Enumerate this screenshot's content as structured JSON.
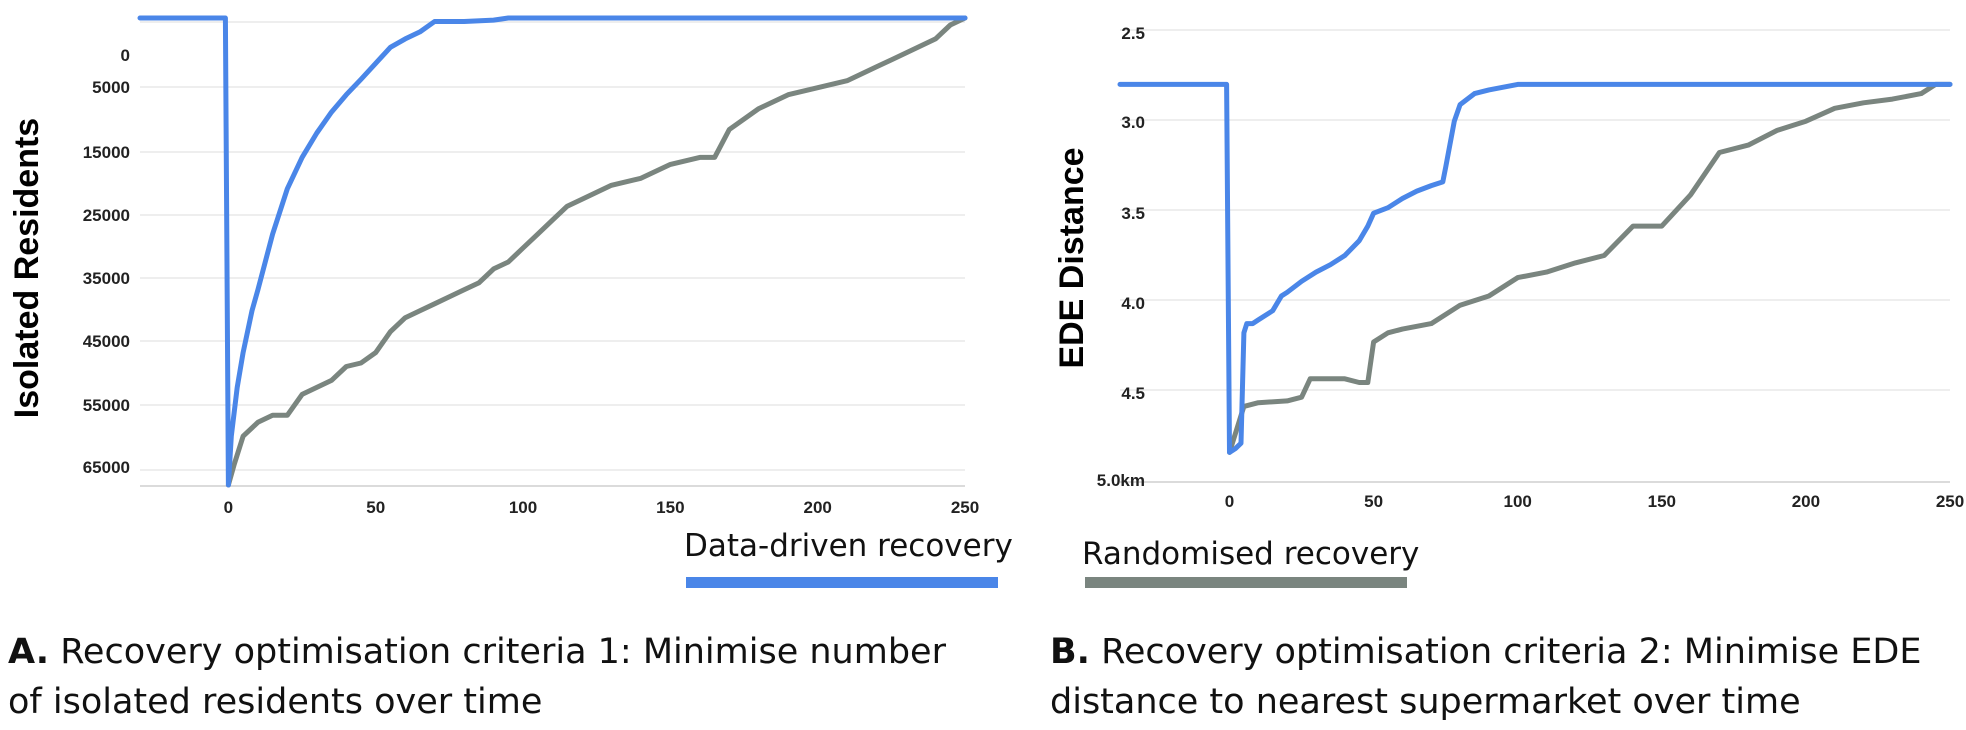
{
  "chart_data": [
    {
      "type": "line",
      "panel": "A",
      "xlabel": "",
      "ylabel": "Isolated Residents",
      "y_inverted": true,
      "xlim": [
        -30,
        250
      ],
      "ylim": [
        0,
        67000
      ],
      "x_ticks": [
        "0",
        "50",
        "100",
        "150",
        "200",
        "250"
      ],
      "y_ticks": [
        "0",
        "5000",
        "15000",
        "25000",
        "35000",
        "45000",
        "55000",
        "65000"
      ],
      "grid": true,
      "series": [
        {
          "name": "Data-driven recovery",
          "color": "#4a86e8",
          "x": [
            -30,
            -1,
            0,
            1,
            3,
            5,
            8,
            10,
            15,
            20,
            25,
            30,
            35,
            40,
            45,
            50,
            55,
            60,
            65,
            70,
            75,
            80,
            90,
            95,
            100,
            150,
            200,
            250
          ],
          "y": [
            0,
            0,
            67000,
            60000,
            53000,
            48000,
            42000,
            39000,
            31000,
            24500,
            20000,
            16500,
            13500,
            11000,
            8800,
            6500,
            4200,
            3000,
            2000,
            500,
            500,
            500,
            300,
            0,
            0,
            0,
            0,
            0
          ]
        },
        {
          "name": "Randomised recovery",
          "color": "#7a857f",
          "x": [
            0,
            2,
            5,
            10,
            15,
            20,
            25,
            30,
            35,
            40,
            45,
            50,
            55,
            60,
            65,
            70,
            75,
            80,
            85,
            90,
            95,
            100,
            105,
            110,
            115,
            120,
            130,
            140,
            150,
            160,
            165,
            170,
            180,
            190,
            200,
            210,
            220,
            230,
            240,
            245,
            250
          ],
          "y": [
            67000,
            64000,
            60000,
            58000,
            57000,
            57000,
            54000,
            53000,
            52000,
            50000,
            49500,
            48000,
            45000,
            43000,
            42000,
            41000,
            40000,
            39000,
            38000,
            36000,
            35000,
            33000,
            31000,
            29000,
            27000,
            26000,
            24000,
            23000,
            21000,
            20000,
            20000,
            16000,
            13000,
            11000,
            10000,
            9000,
            7000,
            5000,
            3000,
            1000,
            0
          ]
        }
      ]
    },
    {
      "type": "line",
      "panel": "B",
      "xlabel": "",
      "ylabel": "EDE Distance",
      "y_inverted": true,
      "xlim": [
        -38,
        250
      ],
      "ylim": [
        2.5,
        5.0
      ],
      "x_ticks": [
        "0",
        "50",
        "100",
        "150",
        "200",
        "250"
      ],
      "y_ticks": [
        "2.5",
        "3.0",
        "3.5",
        "4.0",
        "4.5",
        "5.0km"
      ],
      "grid": true,
      "series": [
        {
          "name": "Data-driven recovery",
          "color": "#4a86e8",
          "x": [
            -38,
            -1,
            0,
            2,
            4,
            5,
            6,
            8,
            10,
            15,
            18,
            20,
            25,
            30,
            35,
            40,
            45,
            48,
            50,
            55,
            60,
            65,
            70,
            74,
            75,
            78,
            80,
            85,
            90,
            100,
            150,
            200,
            250
          ],
          "y": [
            2.85,
            2.85,
            4.85,
            4.83,
            4.8,
            4.2,
            4.15,
            4.15,
            4.13,
            4.08,
            4.0,
            3.98,
            3.92,
            3.87,
            3.83,
            3.78,
            3.7,
            3.62,
            3.55,
            3.52,
            3.47,
            3.43,
            3.4,
            3.38,
            3.3,
            3.05,
            2.96,
            2.9,
            2.88,
            2.85,
            2.85,
            2.85,
            2.85
          ]
        },
        {
          "name": "Randomised recovery",
          "color": "#7a857f",
          "x": [
            0,
            5,
            10,
            20,
            25,
            28,
            30,
            35,
            40,
            45,
            48,
            50,
            55,
            60,
            70,
            80,
            90,
            100,
            110,
            120,
            130,
            140,
            145,
            150,
            160,
            170,
            180,
            190,
            200,
            210,
            220,
            230,
            240,
            245,
            250
          ],
          "y": [
            4.85,
            4.6,
            4.58,
            4.57,
            4.55,
            4.45,
            4.45,
            4.45,
            4.45,
            4.47,
            4.47,
            4.25,
            4.2,
            4.18,
            4.15,
            4.05,
            4.0,
            3.9,
            3.87,
            3.82,
            3.78,
            3.62,
            3.62,
            3.62,
            3.45,
            3.22,
            3.18,
            3.1,
            3.05,
            2.98,
            2.95,
            2.93,
            2.9,
            2.85,
            2.85
          ]
        }
      ]
    }
  ],
  "legend": {
    "data_driven": {
      "label": "Data-driven recovery",
      "color": "#4a86e8"
    },
    "randomised": {
      "label": "Randomised recovery",
      "color": "#7a857f"
    }
  },
  "captions": {
    "a_letter": "A.",
    "a_line1": "Recovery optimisation criteria 1: Minimise number",
    "a_line2": "of isolated residents over time",
    "b_letter": "B.",
    "b_line1": "Recovery optimisation criteria 2: Minimise EDE",
    "b_line2": "distance to nearest supermarket over time"
  }
}
